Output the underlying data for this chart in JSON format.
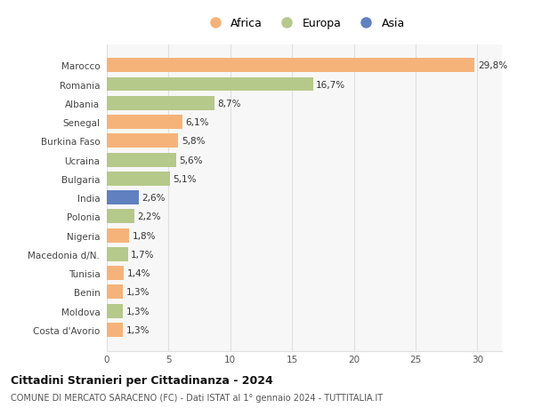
{
  "categories": [
    "Costa d'Avorio",
    "Moldova",
    "Benin",
    "Tunisia",
    "Macedonia d/N.",
    "Nigeria",
    "Polonia",
    "India",
    "Bulgaria",
    "Ucraina",
    "Burkina Faso",
    "Senegal",
    "Albania",
    "Romania",
    "Marocco"
  ],
  "values": [
    1.3,
    1.3,
    1.3,
    1.4,
    1.7,
    1.8,
    2.2,
    2.6,
    5.1,
    5.6,
    5.8,
    6.1,
    8.7,
    16.7,
    29.8
  ],
  "labels": [
    "1,3%",
    "1,3%",
    "1,3%",
    "1,4%",
    "1,7%",
    "1,8%",
    "2,2%",
    "2,6%",
    "5,1%",
    "5,6%",
    "5,8%",
    "6,1%",
    "8,7%",
    "16,7%",
    "29,8%"
  ],
  "colors": [
    "#f5b37a",
    "#b5c98a",
    "#f5b37a",
    "#f5b37a",
    "#b5c98a",
    "#f5b37a",
    "#b5c98a",
    "#6080c0",
    "#b5c98a",
    "#b5c98a",
    "#f5b37a",
    "#f5b37a",
    "#b5c98a",
    "#b5c98a",
    "#f5b37a"
  ],
  "legend_labels": [
    "Africa",
    "Europa",
    "Asia"
  ],
  "legend_colors": [
    "#f5b37a",
    "#b5c98a",
    "#6080c0"
  ],
  "title": "Cittadini Stranieri per Cittadinanza - 2024",
  "subtitle": "COMUNE DI MERCATO SARACENO (FC) - Dati ISTAT al 1° gennaio 2024 - TUTTITALIA.IT",
  "xlim": [
    0,
    32
  ],
  "xticks": [
    0,
    5,
    10,
    15,
    20,
    25,
    30
  ],
  "bg_color": "#ffffff",
  "bar_bg_color": "#f7f7f7",
  "grid_color": "#e0e0e0"
}
